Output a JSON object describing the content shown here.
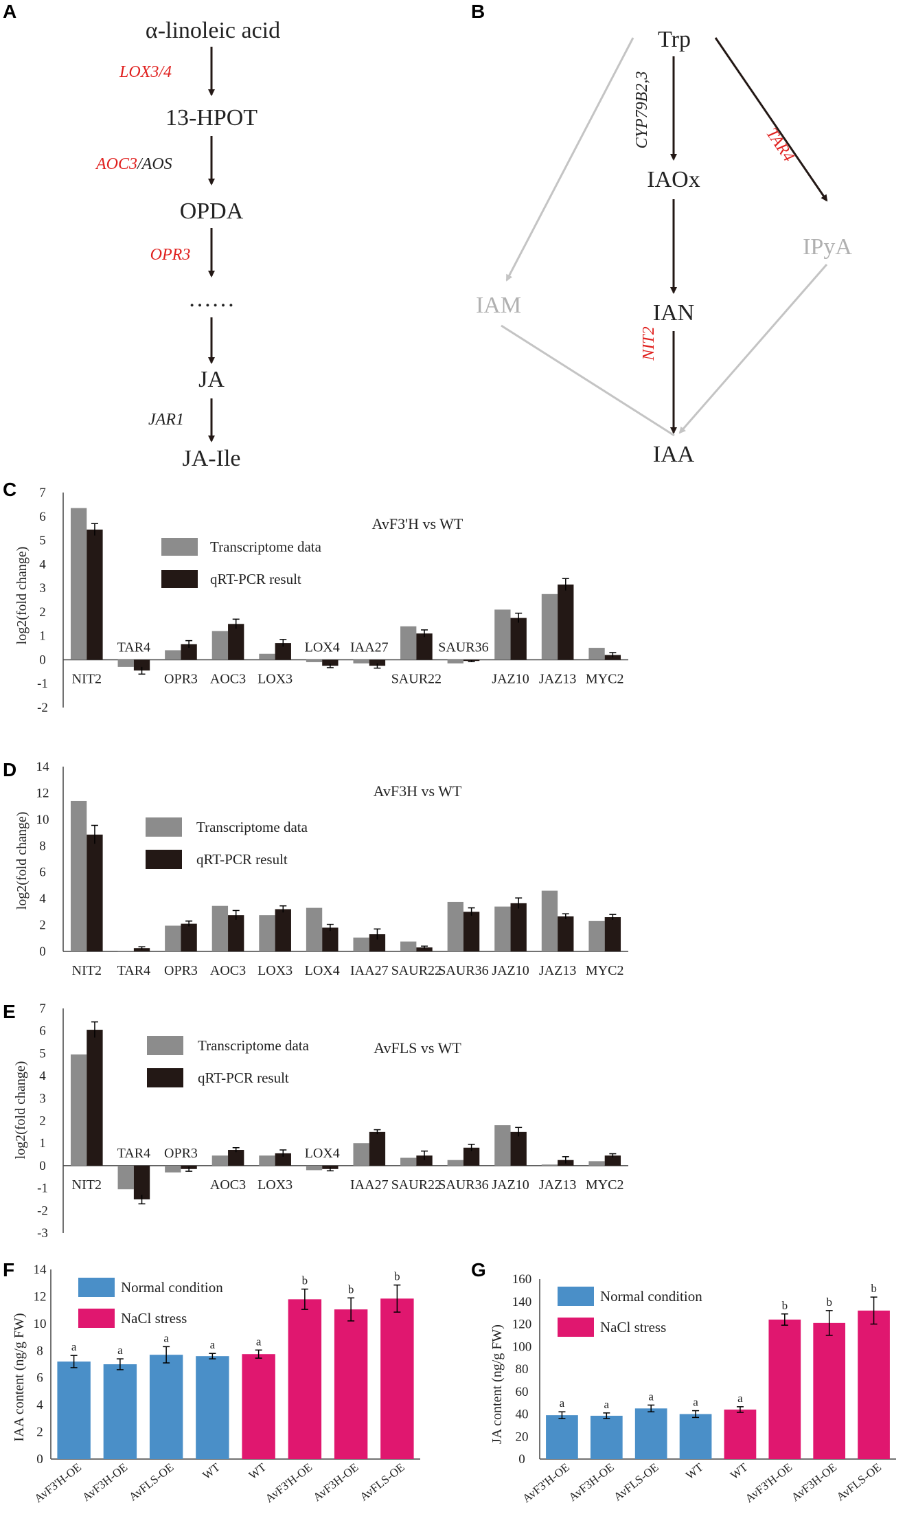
{
  "colors": {
    "transcriptome": "#8c8c8c",
    "qrtpcr": "#231815",
    "normal": "#4a8fc8",
    "nacl": "#e0176f",
    "enzyme_red": "#e0201e",
    "grey_path": "#c4c4c4"
  },
  "panel_a": {
    "label": "A",
    "nodes": [
      "α-linoleic acid",
      "13-HPOT",
      "OPDA",
      "……",
      "JA",
      "JA-Ile"
    ],
    "enzymes": [
      {
        "text": "LOX3/4",
        "color": "red"
      },
      {
        "text": "AOC3",
        "color": "red",
        "suffix": "/AOS"
      },
      {
        "text": "OPR3",
        "color": "red"
      },
      {
        "text": "JAR1",
        "color": "black"
      }
    ]
  },
  "panel_b": {
    "label": "B",
    "nodes": {
      "trp": "Trp",
      "iaox": "IAOx",
      "ian": "IAN",
      "iaa": "IAA",
      "iam": "IAM",
      "ipya": "IPyA"
    },
    "enzymes": {
      "cyp": "CYP79B2,3",
      "tar4": "TAR4",
      "nit2": "NIT2"
    }
  },
  "chart_data": [
    {
      "panel": "C",
      "type": "bar",
      "title": "AvF3'H vs WT",
      "ylabel": "log2(fold change)",
      "ylim": [
        -2,
        7
      ],
      "yticks": [
        -2,
        -1,
        0,
        1,
        2,
        3,
        4,
        5,
        6,
        7
      ],
      "categories": [
        "NIT2",
        "TAR4",
        "OPR3",
        "AOC3",
        "LOX3",
        "LOX4",
        "IAA27",
        "SAUR22",
        "SAUR36",
        "JAZ10",
        "JAZ13",
        "MYC2"
      ],
      "series": [
        {
          "name": "Transcriptome data",
          "values": [
            6.35,
            -0.3,
            0.4,
            1.2,
            0.25,
            -0.1,
            -0.15,
            1.4,
            -0.15,
            2.1,
            2.75,
            0.5
          ]
        },
        {
          "name": "qRT-PCR result",
          "values": [
            5.45,
            -0.45,
            0.65,
            1.5,
            0.7,
            -0.25,
            -0.25,
            1.1,
            -0.05,
            1.75,
            3.15,
            0.2
          ],
          "errors": [
            0.25,
            0.15,
            0.15,
            0.2,
            0.15,
            0.08,
            0.1,
            0.15,
            0.03,
            0.2,
            0.25,
            0.1
          ]
        }
      ]
    },
    {
      "panel": "D",
      "type": "bar",
      "title": "AvF3H vs WT",
      "ylabel": "log2(fold change)",
      "ylim": [
        0,
        14
      ],
      "yticks": [
        0,
        2,
        4,
        6,
        8,
        10,
        12,
        14
      ],
      "categories": [
        "NIT2",
        "TAR4",
        "OPR3",
        "AOC3",
        "LOX3",
        "LOX4",
        "IAA27",
        "SAUR22",
        "SAUR36",
        "JAZ10",
        "JAZ13",
        "MYC2"
      ],
      "series": [
        {
          "name": "Transcriptome data",
          "values": [
            11.4,
            0.05,
            1.95,
            3.45,
            2.75,
            3.3,
            1.05,
            0.75,
            3.75,
            3.4,
            4.6,
            2.3
          ]
        },
        {
          "name": "qRT-PCR result",
          "values": [
            8.85,
            0.25,
            2.1,
            2.75,
            3.2,
            1.8,
            1.3,
            0.3,
            3.0,
            3.65,
            2.65,
            2.6
          ],
          "errors": [
            0.7,
            0.1,
            0.2,
            0.35,
            0.25,
            0.25,
            0.4,
            0.1,
            0.3,
            0.4,
            0.2,
            0.2
          ]
        }
      ]
    },
    {
      "panel": "E",
      "type": "bar",
      "title": "AvFLS vs WT",
      "ylabel": "log2(fold change)",
      "ylim": [
        -3,
        7
      ],
      "yticks": [
        -3,
        -2,
        -1,
        0,
        1,
        2,
        3,
        4,
        5,
        6,
        7
      ],
      "categories": [
        "NIT2",
        "TAR4",
        "OPR3",
        "AOC3",
        "LOX3",
        "LOX4",
        "IAA27",
        "SAUR22",
        "SAUR36",
        "JAZ10",
        "JAZ13",
        "MYC2"
      ],
      "series": [
        {
          "name": "Transcriptome data",
          "values": [
            4.95,
            -1.05,
            -0.3,
            0.45,
            0.45,
            -0.2,
            1.0,
            0.35,
            0.25,
            1.8,
            0.05,
            0.2
          ]
        },
        {
          "name": "qRT-PCR result",
          "values": [
            6.05,
            -1.5,
            -0.15,
            0.7,
            0.55,
            -0.15,
            1.5,
            0.45,
            0.8,
            1.5,
            0.25,
            0.45
          ],
          "errors": [
            0.35,
            0.2,
            0.1,
            0.1,
            0.15,
            0.08,
            0.1,
            0.2,
            0.15,
            0.2,
            0.15,
            0.08
          ]
        }
      ]
    },
    {
      "panel": "F",
      "type": "bar",
      "ylabel": "IAA content (ng/g FW)",
      "ylim": [
        0,
        14
      ],
      "yticks": [
        0,
        2,
        4,
        6,
        8,
        10,
        12,
        14
      ],
      "categories": [
        "AvF3'H-OE",
        "AvF3H-OE",
        "AvFLS-OE",
        "WT",
        "WT",
        "AvF3'H-OE",
        "AvF3H-OE",
        "AvFLS-OE"
      ],
      "values": [
        7.2,
        7.0,
        7.7,
        7.6,
        7.75,
        11.8,
        11.05,
        11.85
      ],
      "errors": [
        0.45,
        0.4,
        0.6,
        0.2,
        0.3,
        0.75,
        0.85,
        1.0
      ],
      "significance": [
        "a",
        "a",
        "a",
        "a",
        "a",
        "b",
        "b",
        "b"
      ],
      "groups": [
        "Normal condition",
        "Normal condition",
        "Normal condition",
        "Normal condition",
        "NaCl stress",
        "NaCl stress",
        "NaCl stress",
        "NaCl stress"
      ],
      "legend": [
        "Normal condition",
        "NaCl stress"
      ]
    },
    {
      "panel": "G",
      "type": "bar",
      "ylabel": "JA content (ng/g FW)",
      "ylim": [
        0,
        160
      ],
      "yticks": [
        0,
        20,
        40,
        60,
        80,
        100,
        120,
        140,
        160
      ],
      "categories": [
        "AvF3'H-OE",
        "AvF3H-OE",
        "AvFLS-OE",
        "WT",
        "WT",
        "AvF3'H-OE",
        "AvF3H-OE",
        "AvFLS-OE"
      ],
      "values": [
        39,
        38.5,
        45,
        40,
        44,
        124,
        121,
        132
      ],
      "errors": [
        3,
        2.5,
        3,
        3,
        2.5,
        5,
        11,
        12
      ],
      "significance": [
        "a",
        "a",
        "a",
        "a",
        "a",
        "b",
        "b",
        "b"
      ],
      "groups": [
        "Normal condition",
        "Normal condition",
        "Normal condition",
        "Normal condition",
        "NaCl stress",
        "NaCl stress",
        "NaCl stress",
        "NaCl stress"
      ],
      "legend": [
        "Normal condition",
        "NaCl stress"
      ]
    }
  ]
}
